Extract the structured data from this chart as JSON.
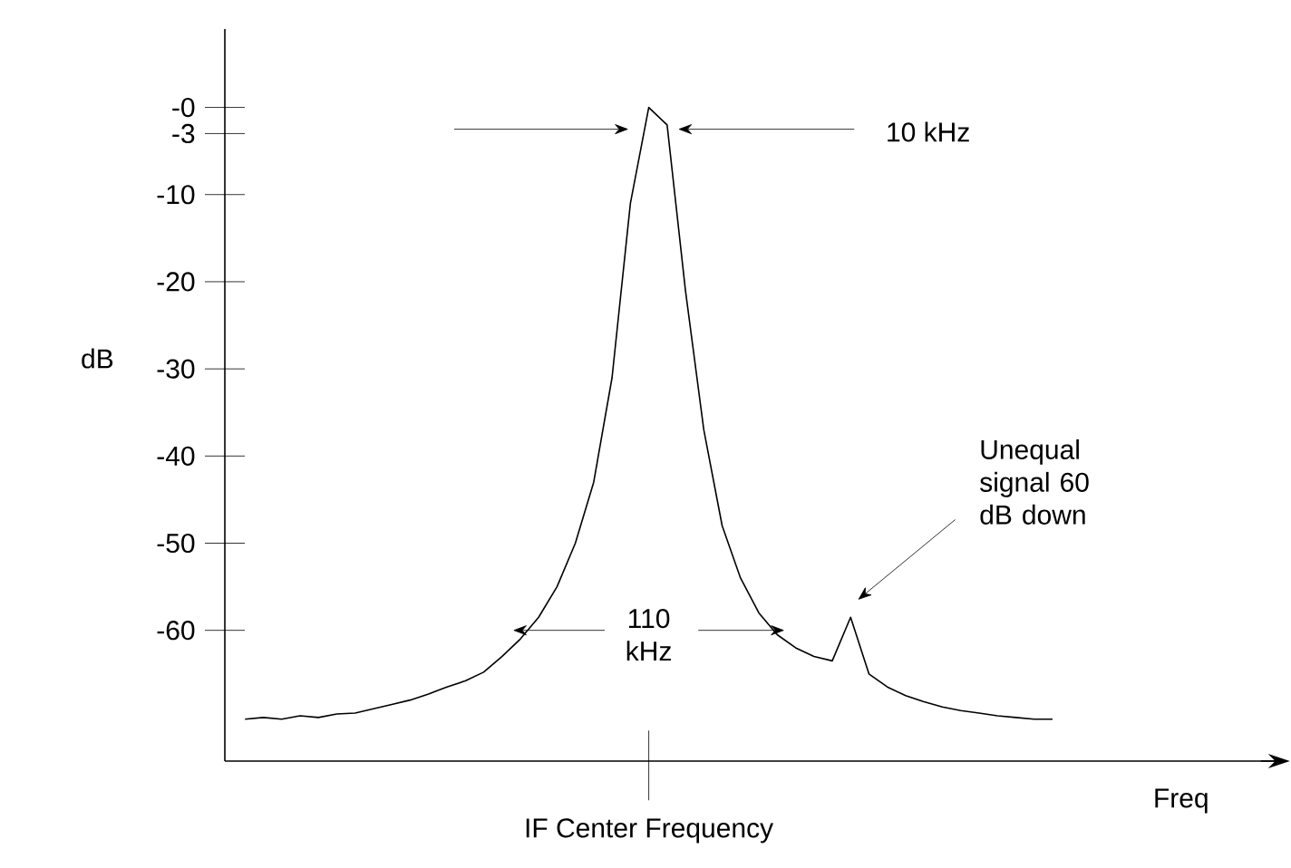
{
  "chart_data": {
    "type": "line",
    "xlabel": "Freq",
    "ylabel": "dB",
    "categories": [
      null,
      null,
      null,
      null,
      null,
      null,
      null,
      null,
      null,
      null,
      null,
      null,
      null,
      null,
      null,
      null,
      null,
      null,
      null,
      null,
      null,
      null,
      null,
      null,
      null,
      null,
      null,
      null,
      null,
      null,
      null,
      null,
      null,
      null,
      null,
      null,
      null,
      null,
      null,
      null,
      null,
      null,
      null,
      null,
      null
    ],
    "values": [
      -70.2,
      -70,
      -70.2,
      -69.8,
      -70,
      -69.6,
      -69.5,
      -69,
      -68.5,
      -68,
      -67.3,
      -66.5,
      -65.8,
      -64.8,
      -63,
      -61,
      -58.5,
      -55,
      -50,
      -43,
      -31,
      -11,
      0,
      -2,
      -21,
      -37,
      -48,
      -54,
      -58,
      -60.5,
      -62,
      -63,
      -63.5,
      -58.5,
      -65,
      -66.5,
      -67.5,
      -68.2,
      -68.8,
      -69.2,
      -69.5,
      -69.8,
      -70,
      -70.2,
      -70.2
    ],
    "color": "#000000",
    "ylim": [
      -75,
      9
    ],
    "yticks": [
      {
        "value": 0,
        "label": "-0"
      },
      -3,
      -10,
      -20,
      -30,
      -40,
      -50,
      -60
    ],
    "annotations": [
      "10 kHz",
      "110 kHz",
      "Unequal signal 60 dB down",
      "IF Center Frequency"
    ]
  }
}
